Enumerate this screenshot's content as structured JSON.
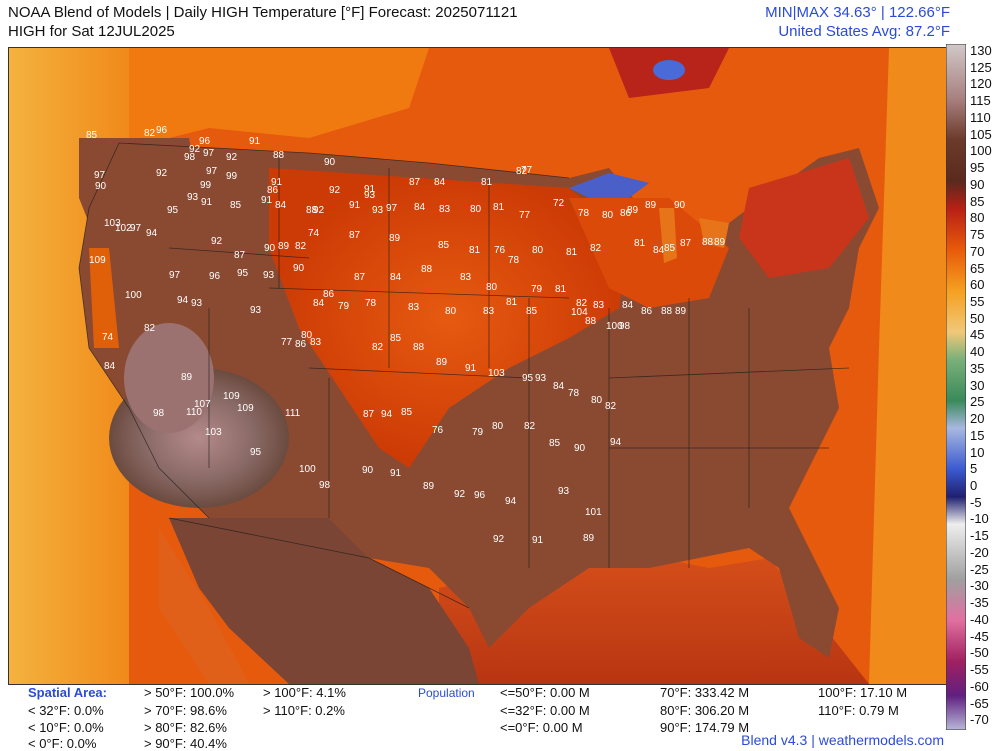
{
  "header": {
    "title_line1": "NOAA Blend of Models | Daily HIGH Temperature [°F] Forecast: 2025071121",
    "title_line2": "HIGH for Sat 12JUL2025",
    "minmax": "MIN|MAX 34.63°  |  122.66°F",
    "avg": "United States Avg: 87.2°F"
  },
  "colorbar": {
    "ticks": [
      "130",
      "125",
      "120",
      "115",
      "110",
      "105",
      "100",
      "95",
      "90",
      "85",
      "80",
      "75",
      "70",
      "65",
      "60",
      "55",
      "50",
      "45",
      "40",
      "35",
      "30",
      "25",
      "20",
      "15",
      "10",
      "5",
      "0",
      "-5",
      "-10",
      "-15",
      "-20",
      "-25",
      "-30",
      "-35",
      "-40",
      "-45",
      "-50",
      "-55",
      "-60",
      "-65",
      "-70"
    ]
  },
  "stats": {
    "spatial_label": "Spatial Area:",
    "spatial_col1": [
      "< 32°F: 0.0%",
      "< 10°F: 0.0%",
      "< 0°F: 0.0%"
    ],
    "spatial_col2": [
      "> 50°F: 100.0%",
      "> 70°F: 98.6%",
      "> 80°F: 82.6%",
      "> 90°F: 40.4%"
    ],
    "spatial_col3": [
      "> 100°F: 4.1%",
      "> 110°F: 0.2%"
    ],
    "population_label": "Population",
    "pop_col1": [
      "<=50°F: 0.00 M",
      "<=32°F: 0.00 M",
      "<=0°F: 0.00 M"
    ],
    "pop_col2": [
      "70°F: 333.42 M",
      "80°F: 306.20 M",
      "90°F: 174.79 M"
    ],
    "pop_col3": [
      "100°F: 17.10 M",
      "110°F: 0.79 M"
    ]
  },
  "footer": "Blend v4.3 | weathermodels.com",
  "map_labels": [
    "96",
    "82",
    "85",
    "92",
    "96",
    "91",
    "88",
    "97",
    "98",
    "92",
    "90",
    "92",
    "97",
    "99",
    "99",
    "97",
    "90",
    "91",
    "86",
    "92",
    "91",
    "93",
    "91",
    "87",
    "84",
    "81",
    "82",
    "77",
    "95",
    "93",
    "91",
    "85",
    "91",
    "84",
    "88",
    "92",
    "93",
    "97",
    "84",
    "83",
    "80",
    "81",
    "77",
    "72",
    "78",
    "80",
    "86",
    "89",
    "89",
    "90",
    "103",
    "102",
    "97",
    "94",
    "92",
    "87",
    "90",
    "89",
    "82",
    "74",
    "87",
    "89",
    "85",
    "81",
    "76",
    "78",
    "80",
    "81",
    "82",
    "81",
    "84",
    "85",
    "87",
    "88",
    "89",
    "109",
    "97",
    "96",
    "95",
    "93",
    "90",
    "86",
    "87",
    "84",
    "88",
    "83",
    "80",
    "81",
    "79",
    "81",
    "82",
    "83",
    "84",
    "86",
    "88",
    "89",
    "100",
    "94",
    "93",
    "93",
    "86",
    "84",
    "79",
    "78",
    "83",
    "80",
    "83",
    "85",
    "104",
    "88",
    "100",
    "98",
    "74",
    "82",
    "77",
    "80",
    "83",
    "82",
    "85",
    "88",
    "89",
    "91",
    "103",
    "95",
    "93",
    "84",
    "78",
    "80",
    "82",
    "84",
    "89",
    "109",
    "111",
    "87",
    "94",
    "85",
    "76",
    "79",
    "80",
    "82",
    "85",
    "90",
    "94",
    "98",
    "107",
    "110",
    "109",
    "103",
    "95",
    "100",
    "98",
    "90",
    "91",
    "89",
    "92",
    "96",
    "94",
    "93",
    "101",
    "92",
    "91",
    "89"
  ]
}
